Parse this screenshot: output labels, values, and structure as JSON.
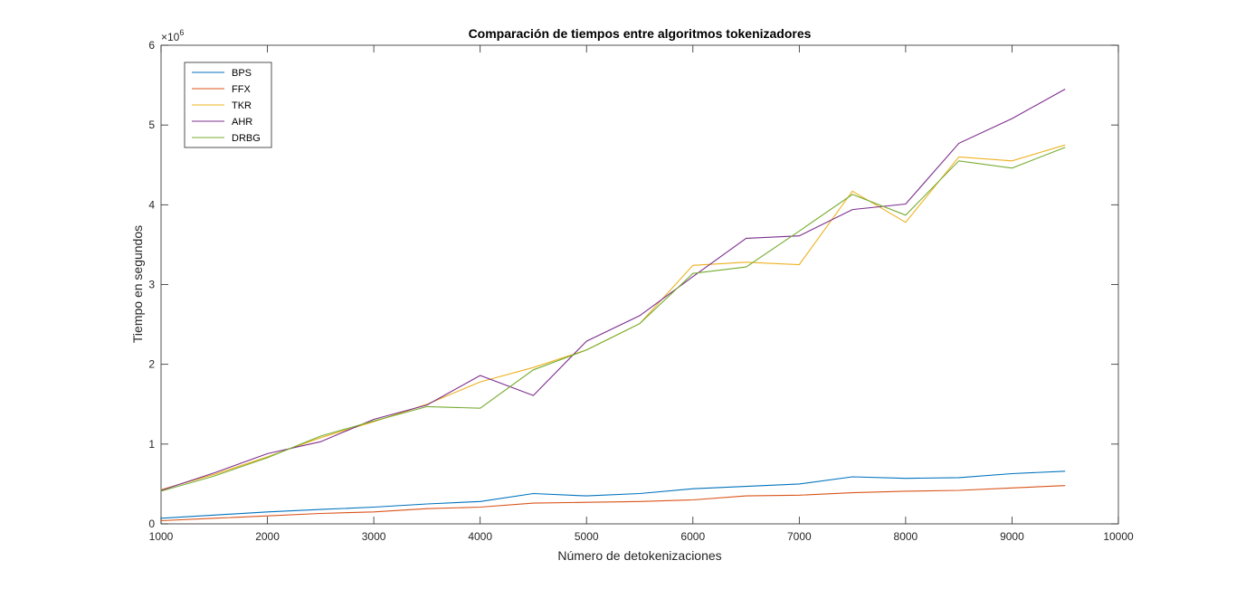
{
  "chart_data": {
    "type": "line",
    "title": "Comparación de tiempos entre algoritmos tokenizadores",
    "xlabel": "Número de detokenizaciones",
    "ylabel": "Tiempo en segundos",
    "xlim": [
      1000,
      10000
    ],
    "ylim": [
      0,
      6
    ],
    "y_multiplier_label": "×10",
    "y_multiplier_exp": "6",
    "xticks": [
      1000,
      2000,
      3000,
      4000,
      5000,
      6000,
      7000,
      8000,
      9000,
      10000
    ],
    "yticks": [
      0,
      1,
      2,
      3,
      4,
      5,
      6
    ],
    "grid": false,
    "legend_position": "top-left",
    "x": [
      1000,
      1500,
      2000,
      2500,
      3000,
      3500,
      4000,
      4500,
      5000,
      5500,
      6000,
      6500,
      7000,
      7500,
      8000,
      8500,
      9000,
      9500
    ],
    "series": [
      {
        "name": "BPS",
        "color": "#0072BD",
        "values": [
          0.07,
          0.11,
          0.15,
          0.18,
          0.21,
          0.25,
          0.28,
          0.38,
          0.35,
          0.38,
          0.44,
          0.47,
          0.5,
          0.59,
          0.57,
          0.58,
          0.63,
          0.66
        ]
      },
      {
        "name": "FFX",
        "color": "#D95319",
        "values": [
          0.04,
          0.07,
          0.1,
          0.13,
          0.15,
          0.19,
          0.21,
          0.26,
          0.27,
          0.28,
          0.3,
          0.35,
          0.36,
          0.39,
          0.41,
          0.42,
          0.45,
          0.48
        ]
      },
      {
        "name": "TKR",
        "color": "#EDB120",
        "values": [
          0.43,
          0.62,
          0.84,
          1.08,
          1.28,
          1.5,
          1.78,
          1.96,
          2.18,
          2.51,
          3.24,
          3.28,
          3.25,
          4.17,
          3.78,
          4.6,
          4.55,
          4.75
        ]
      },
      {
        "name": "AHR",
        "color": "#7E2F8E",
        "values": [
          0.42,
          0.64,
          0.88,
          1.03,
          1.31,
          1.49,
          1.86,
          1.61,
          2.29,
          2.61,
          3.1,
          3.58,
          3.61,
          3.94,
          4.01,
          4.77,
          5.08,
          5.45
        ]
      },
      {
        "name": "DRBG",
        "color": "#77AC30",
        "values": [
          0.41,
          0.6,
          0.83,
          1.1,
          1.29,
          1.47,
          1.45,
          1.93,
          2.18,
          2.51,
          3.14,
          3.22,
          3.67,
          4.13,
          3.87,
          4.55,
          4.46,
          4.72
        ]
      }
    ]
  }
}
